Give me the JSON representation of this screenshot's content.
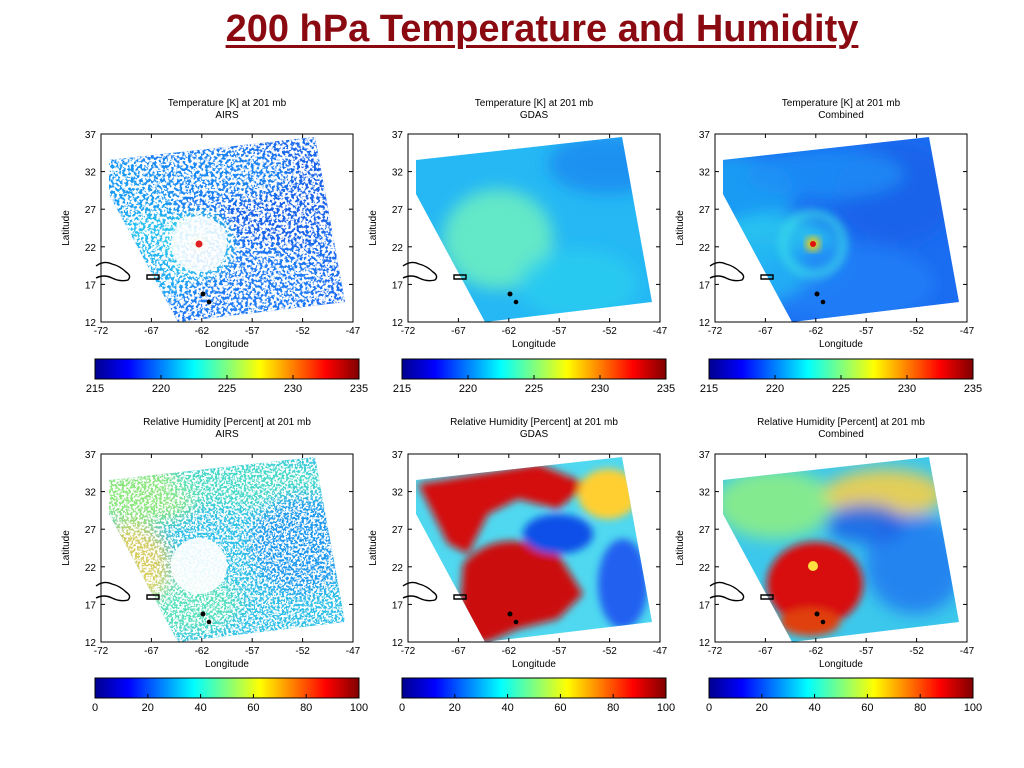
{
  "slide": {
    "title": "200 hPa Temperature and Humidity"
  },
  "chart_data": [
    {
      "type": "heatmap",
      "title": "Temperature [K] at 201 mb",
      "subtitle": "AIRS",
      "xlabel": "Longitude",
      "ylabel": "Latitude",
      "xlim": [
        -72,
        -47
      ],
      "ylim": [
        12,
        37
      ],
      "xticks": [
        -72,
        -67,
        -62,
        -57,
        -52,
        -47
      ],
      "yticks": [
        12,
        17,
        22,
        27,
        32,
        37
      ],
      "colorbar": {
        "min": 215,
        "max": 235,
        "ticks": [
          215,
          220,
          225,
          230,
          235
        ]
      }
    },
    {
      "type": "heatmap",
      "title": "Temperature [K] at 201 mb",
      "subtitle": "GDAS",
      "xlabel": "Longitude",
      "ylabel": "Latitude",
      "xlim": [
        -72,
        -47
      ],
      "ylim": [
        12,
        37
      ],
      "xticks": [
        -72,
        -67,
        -62,
        -57,
        -52,
        -47
      ],
      "yticks": [
        12,
        17,
        22,
        27,
        32,
        37
      ],
      "colorbar": {
        "min": 215,
        "max": 235,
        "ticks": [
          215,
          220,
          225,
          230,
          235
        ]
      }
    },
    {
      "type": "heatmap",
      "title": "Temperature [K] at 201 mb",
      "subtitle": "Combined",
      "xlabel": "Longitude",
      "ylabel": "Latitude",
      "xlim": [
        -72,
        -47
      ],
      "ylim": [
        12,
        37
      ],
      "xticks": [
        -72,
        -67,
        -62,
        -57,
        -52,
        -47
      ],
      "yticks": [
        12,
        17,
        22,
        27,
        32,
        37
      ],
      "colorbar": {
        "min": 215,
        "max": 235,
        "ticks": [
          215,
          220,
          225,
          230,
          235
        ]
      }
    },
    {
      "type": "heatmap",
      "title": "Relative Humidity [Percent] at 201 mb",
      "subtitle": "AIRS",
      "xlabel": "Longitude",
      "ylabel": "Latitude",
      "xlim": [
        -72,
        -47
      ],
      "ylim": [
        12,
        37
      ],
      "xticks": [
        -72,
        -67,
        -62,
        -57,
        -52,
        -47
      ],
      "yticks": [
        12,
        17,
        22,
        27,
        32,
        37
      ],
      "colorbar": {
        "min": 0,
        "max": 100,
        "ticks": [
          0,
          20,
          40,
          60,
          80,
          100
        ]
      }
    },
    {
      "type": "heatmap",
      "title": "Relative Humidity [Percent] at 201 mb",
      "subtitle": "GDAS",
      "xlabel": "Longitude",
      "ylabel": "Latitude",
      "xlim": [
        -72,
        -47
      ],
      "ylim": [
        12,
        37
      ],
      "xticks": [
        -72,
        -67,
        -62,
        -57,
        -52,
        -47
      ],
      "yticks": [
        12,
        17,
        22,
        27,
        32,
        37
      ],
      "colorbar": {
        "min": 0,
        "max": 100,
        "ticks": [
          0,
          20,
          40,
          60,
          80,
          100
        ]
      }
    },
    {
      "type": "heatmap",
      "title": "Relative Humidity [Percent] at 201 mb",
      "subtitle": "Combined",
      "xlabel": "Longitude",
      "ylabel": "Latitude",
      "xlim": [
        -72,
        -47
      ],
      "ylim": [
        12,
        37
      ],
      "xticks": [
        -72,
        -67,
        -62,
        -57,
        -52,
        -47
      ],
      "yticks": [
        12,
        17,
        22,
        27,
        32,
        37
      ],
      "colorbar": {
        "min": 0,
        "max": 100,
        "ticks": [
          0,
          20,
          40,
          60,
          80,
          100
        ]
      }
    }
  ]
}
